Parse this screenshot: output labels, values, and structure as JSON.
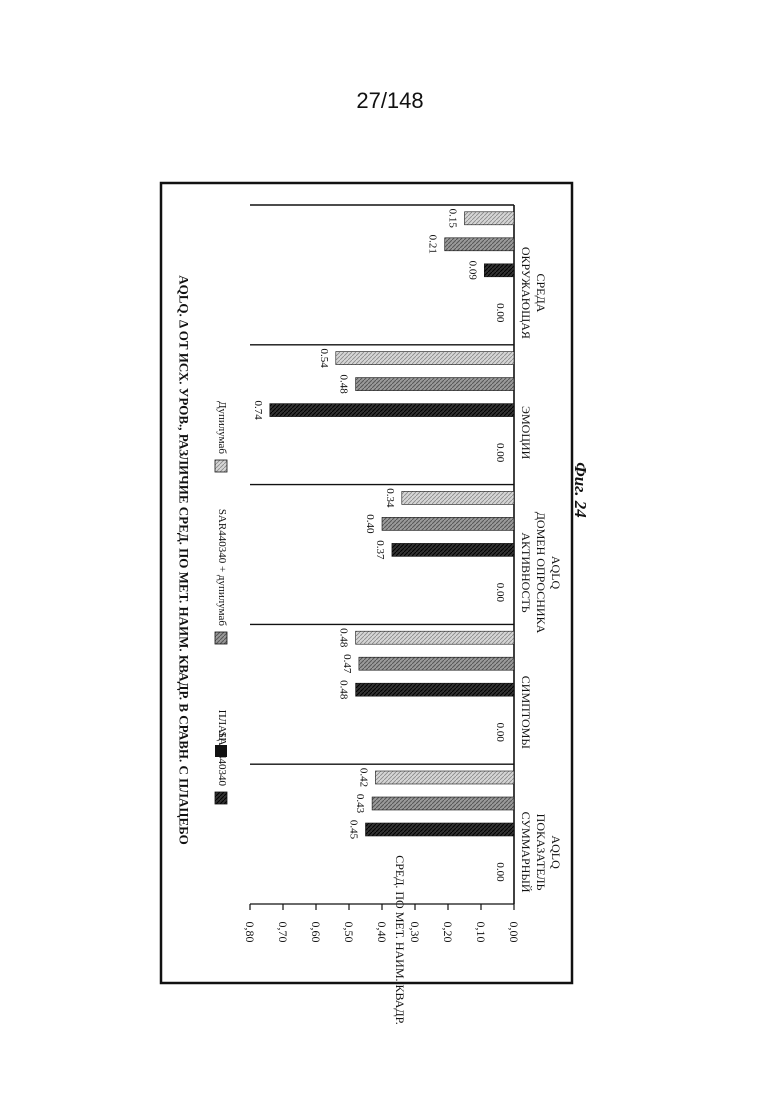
{
  "page_number": "27/148",
  "figure_caption": "Фиг. 24",
  "chart_data": {
    "type": "bar",
    "orientation": "rotated 90° clockwise on page",
    "title": "AQLQ. Δ ОТ ИСХ. УРОВ., РАЗЛИЧИЕ СРЕД. ПО МЕТ. НАИМ. КВАДР. В СРАВН. С ПЛАЦЕБО",
    "ylabel": "СРЕД. ПО МЕТ. НАИМ. КВАДР.",
    "ylim": [
      0,
      0.8
    ],
    "yticks": [
      "0,00",
      "0,10",
      "0,20",
      "0,30",
      "0,40",
      "0,50",
      "0,60",
      "0,70",
      "0,80"
    ],
    "categories": [
      [
        "СУММАРНЫЙ",
        "ПОКАЗАТЕЛЬ",
        "AQLQ"
      ],
      [
        "СИМПТОМЫ"
      ],
      [
        "АКТИВНОСТЬ",
        "ДОМЕН ОПРОСНИКА",
        "AQLQ"
      ],
      [
        "ЭМОЦИИ"
      ],
      [
        "ОКРУЖАЮЩАЯ",
        "СРЕДА"
      ]
    ],
    "series": [
      {
        "name": "ПЛАЦ",
        "values": [
          0.0,
          0.0,
          0.0,
          0.0,
          0.0
        ],
        "labels": [
          "0.00",
          "0.00",
          "0.00",
          "0.00",
          "0.00"
        ],
        "color": "#ffffff"
      },
      {
        "name": "SAR440340",
        "values": [
          0.45,
          0.48,
          0.37,
          0.74,
          0.09
        ],
        "labels": [
          "0.45",
          "0.48",
          "0.37",
          "0.74",
          "0.09"
        ],
        "color": "#111111"
      },
      {
        "name": "SAR440340 + дупилумаб",
        "values": [
          0.43,
          0.47,
          0.4,
          0.48,
          0.21
        ],
        "labels": [
          "0.43",
          "0.47",
          "0.40",
          "0.48",
          "0.21"
        ],
        "color": "#8a8a8a"
      },
      {
        "name": "Дупилумаб",
        "values": [
          0.42,
          0.48,
          0.34,
          0.54,
          0.15
        ],
        "labels": [
          "0.42",
          "0.48",
          "0.34",
          "0.54",
          "0.15"
        ],
        "color": "#c4c4c4"
      }
    ],
    "legend_position": "top"
  },
  "colors": {
    "ink": "#111111",
    "placebo_fill": "#111111",
    "combo_fill": "#8a8a8a",
    "dupi_fill": "#c4c4c4"
  }
}
